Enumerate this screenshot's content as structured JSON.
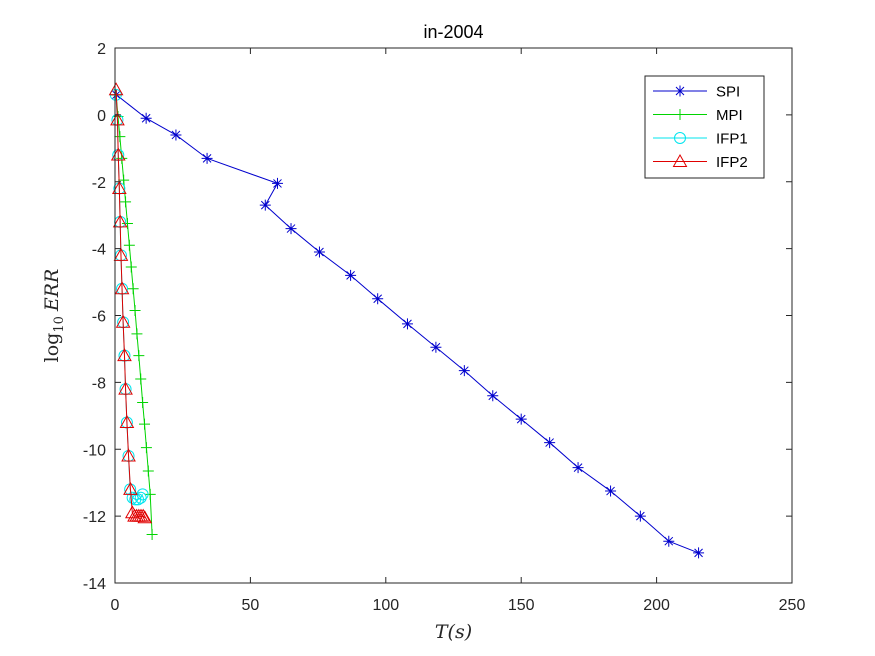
{
  "chart_data": {
    "type": "line",
    "title": "in-2004",
    "xlabel_text": "T(s)",
    "ylabel_prefix": "log",
    "ylabel_sub": "10",
    "ylabel_var": "ERR",
    "xlim": [
      0,
      250
    ],
    "ylim": [
      -14,
      2
    ],
    "xticks": [
      0,
      50,
      100,
      150,
      200,
      250
    ],
    "yticks": [
      -14,
      -12,
      -10,
      -8,
      -6,
      -4,
      -2,
      0,
      2
    ],
    "grid": false,
    "legend_position": "top-right",
    "series": [
      {
        "name": "SPI",
        "color": "#0000cd",
        "marker": "asterisk",
        "x": [
          0.5,
          11.5,
          22.5,
          34,
          60,
          55.5,
          65,
          75.5,
          87,
          97,
          108,
          118.5,
          129,
          139.5,
          150,
          160.5,
          171,
          183,
          194,
          204.5,
          215.5
        ],
        "y": [
          0.6,
          -0.1,
          -0.6,
          -1.3,
          -2.05,
          -2.7,
          -3.4,
          -4.1,
          -4.8,
          -5.5,
          -6.25,
          -6.95,
          -7.65,
          -8.4,
          -9.1,
          -9.8,
          -10.55,
          -11.25,
          -12.0,
          -12.75,
          -13.1
        ]
      },
      {
        "name": "MPI",
        "color": "#00d400",
        "marker": "plus",
        "x": [
          0.4,
          1.1,
          1.8,
          2.5,
          3.2,
          3.9,
          4.6,
          5.3,
          6.0,
          6.7,
          7.4,
          8.1,
          8.8,
          9.5,
          10.2,
          10.9,
          11.6,
          12.3,
          13.0,
          13.7
        ],
        "y": [
          0.6,
          -0.05,
          -0.65,
          -1.3,
          -1.95,
          -2.6,
          -3.25,
          -3.9,
          -4.55,
          -5.2,
          -5.85,
          -6.55,
          -7.2,
          -7.9,
          -8.6,
          -9.25,
          -9.95,
          -10.65,
          -11.35,
          -12.55
        ]
      },
      {
        "name": "IFP1",
        "color": "#00e5ee",
        "marker": "circle",
        "x": [
          0.3,
          0.9,
          1.2,
          1.6,
          1.9,
          2.2,
          2.6,
          3.0,
          3.5,
          3.9,
          4.4,
          5.0,
          5.6,
          6.5,
          7.5,
          8.5,
          9.5,
          10.2
        ],
        "y": [
          0.6,
          -0.15,
          -1.2,
          -2.2,
          -3.2,
          -4.2,
          -5.2,
          -6.2,
          -7.2,
          -8.2,
          -9.2,
          -10.2,
          -11.2,
          -11.45,
          -11.5,
          -11.5,
          -11.45,
          -11.35
        ]
      },
      {
        "name": "IFP2",
        "color": "#e00000",
        "marker": "triangle",
        "x": [
          0.4,
          0.9,
          1.2,
          1.6,
          1.9,
          2.2,
          2.6,
          3.0,
          3.5,
          3.9,
          4.4,
          5.0,
          5.7,
          6.4,
          7.2,
          8.0,
          8.8,
          9.6,
          10.4,
          11.0
        ],
        "y": [
          0.75,
          -0.15,
          -1.2,
          -2.2,
          -3.2,
          -4.2,
          -5.2,
          -6.2,
          -7.2,
          -8.2,
          -9.2,
          -10.2,
          -11.2,
          -11.9,
          -12.0,
          -12.0,
          -12.0,
          -12.0,
          -12.0,
          -12.05
        ]
      }
    ]
  }
}
